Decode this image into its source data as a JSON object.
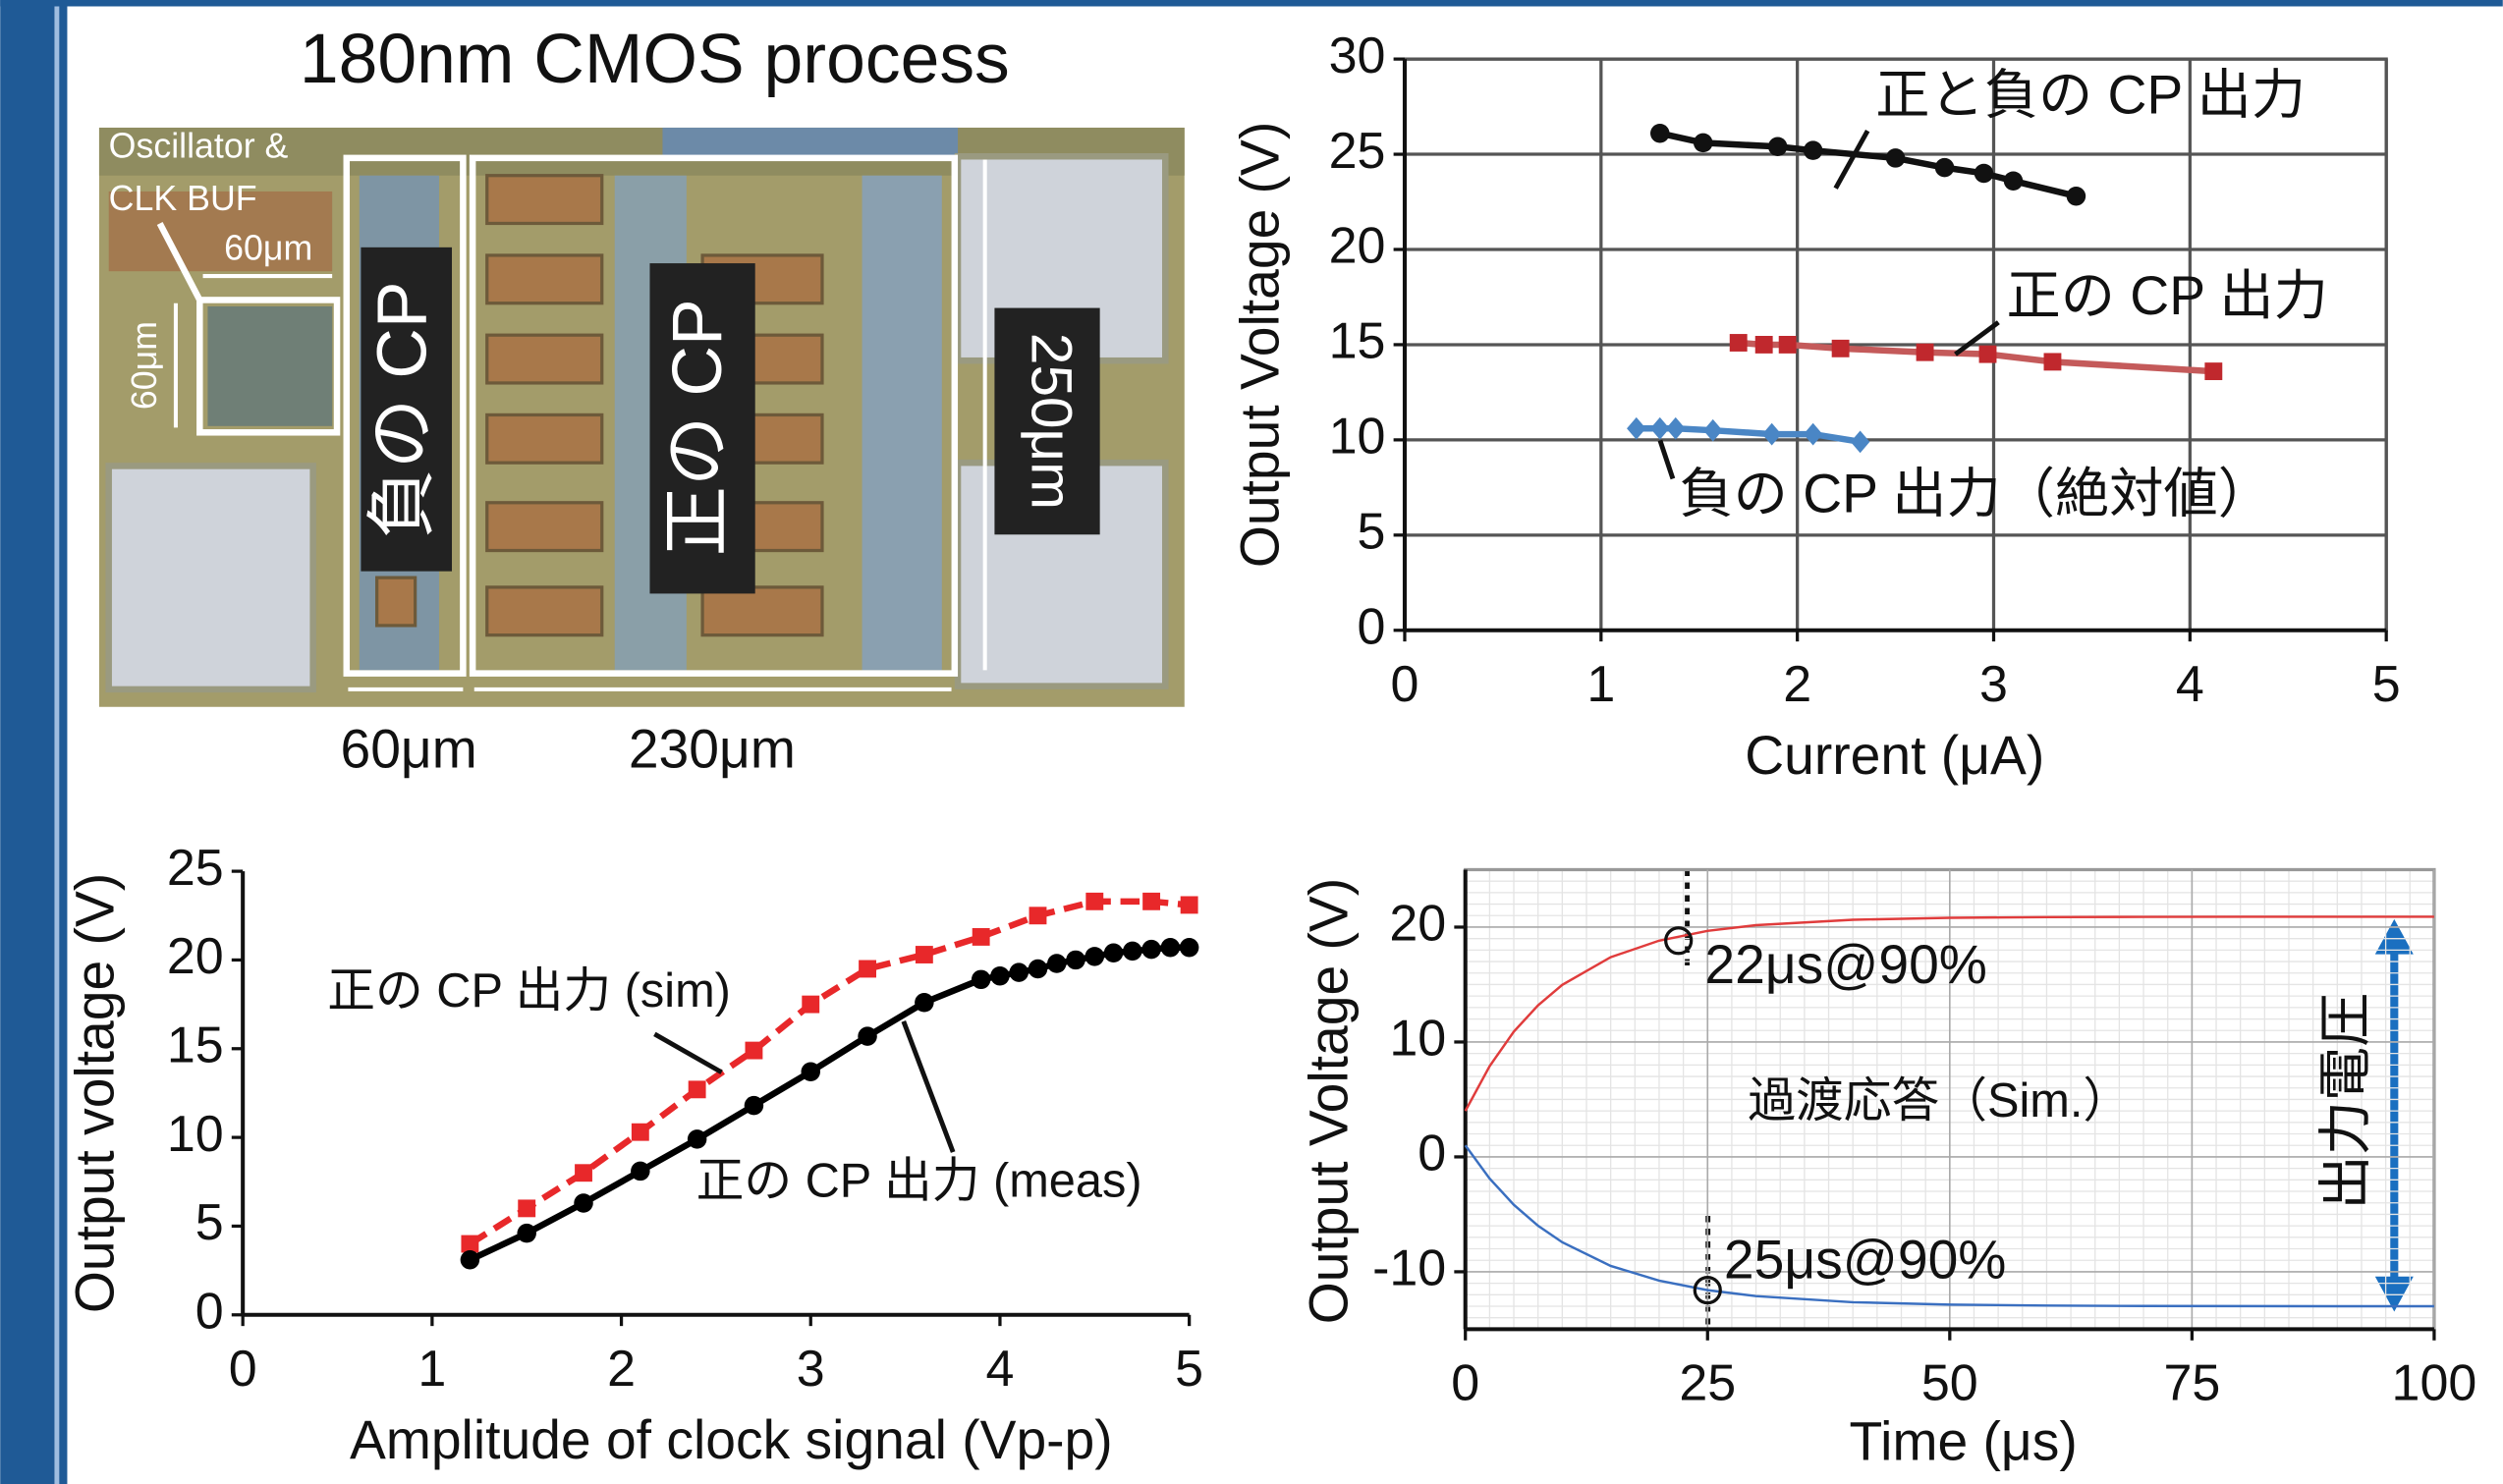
{
  "title": "180nm CMOS process",
  "die_photo": {
    "labels": [
      "Oscillator &",
      "CLK BUF",
      "60μm",
      "60μm",
      "負の CP",
      "正の CP",
      "250μm",
      "60μm",
      "230μm"
    ]
  },
  "chart_data": [
    {
      "type": "line",
      "x_label": "Current (μA)",
      "y_label": "Output Voltage (V)",
      "xlim": [
        0,
        5
      ],
      "xticks": [
        0,
        1,
        2,
        3,
        4,
        5
      ],
      "ylim": [
        0,
        30
      ],
      "yticks": [
        0,
        5,
        10,
        15,
        20,
        25,
        30
      ],
      "grid": true,
      "series": [
        {
          "name": "正と負の CP 出力",
          "color": "#111111",
          "marker": "circle",
          "line_color": "#111111",
          "x": [
            1.3,
            1.52,
            1.9,
            2.08,
            2.5,
            2.75,
            2.95,
            3.1,
            3.42
          ],
          "values": [
            26.1,
            25.6,
            25.4,
            25.2,
            24.8,
            24.3,
            24.0,
            23.6,
            22.8
          ]
        },
        {
          "name": "正の CP 出力",
          "color": "#c0282d",
          "marker": "square",
          "line_color": "#c45a5a",
          "x": [
            1.7,
            1.83,
            1.95,
            2.22,
            2.65,
            2.97,
            3.3,
            4.12
          ],
          "values": [
            15.1,
            15.0,
            15.0,
            14.8,
            14.6,
            14.5,
            14.1,
            13.6
          ]
        },
        {
          "name": "負の CP 出力（絶対値）",
          "color": "#4a86c5",
          "marker": "diamond",
          "line_color": "#4a86c5",
          "x": [
            1.18,
            1.3,
            1.38,
            1.57,
            1.87,
            2.08,
            2.32
          ],
          "values": [
            10.6,
            10.6,
            10.6,
            10.5,
            10.3,
            10.3,
            9.9
          ]
        }
      ]
    },
    {
      "type": "line",
      "x_label": "Amplitude of clock signal (Vp-p)",
      "y_label": "Output voltage (V)",
      "xlim": [
        0,
        5
      ],
      "xticks": [
        0,
        1,
        2,
        3,
        4,
        5
      ],
      "ylim": [
        0,
        25
      ],
      "yticks": [
        0,
        5,
        10,
        15,
        20,
        25
      ],
      "grid": false,
      "series": [
        {
          "name": "正の CP 出力 (sim)",
          "color": "#e8282a",
          "marker": "square",
          "line_color": "#e8282a",
          "dash": true,
          "x": [
            1.2,
            1.5,
            1.8,
            2.1,
            2.4,
            2.7,
            3.0,
            3.3,
            3.6,
            3.9,
            4.2,
            4.5,
            4.8,
            5.0
          ],
          "values": [
            4.0,
            6.0,
            8.0,
            10.3,
            12.7,
            14.9,
            17.5,
            19.5,
            20.3,
            21.3,
            22.5,
            23.3,
            23.3,
            23.1
          ]
        },
        {
          "name": "正の CP 出力 (meas)",
          "color": "#000000",
          "marker": "circle",
          "line_color": "#000000",
          "x": [
            1.2,
            1.5,
            1.8,
            2.1,
            2.4,
            2.7,
            3.0,
            3.3,
            3.6,
            3.9,
            4.0,
            4.1,
            4.2,
            4.3,
            4.4,
            4.5,
            4.6,
            4.7,
            4.8,
            4.9,
            5.0
          ],
          "values": [
            3.1,
            4.6,
            6.3,
            8.1,
            9.9,
            11.8,
            13.7,
            15.7,
            17.6,
            18.9,
            19.1,
            19.3,
            19.5,
            19.8,
            20.0,
            20.2,
            20.4,
            20.5,
            20.6,
            20.7,
            20.7
          ]
        }
      ]
    },
    {
      "type": "line",
      "x_label": "Time (μs)",
      "y_label": "Output Voltage (V)",
      "xlim": [
        0,
        100
      ],
      "xticks": [
        0,
        25,
        50,
        75,
        100
      ],
      "ylim": [
        -15,
        25
      ],
      "yticks": [
        -10,
        0,
        10,
        20
      ],
      "grid": "minor",
      "annotations": [
        "22μs@90%",
        "25μs@90%",
        "過渡応答（Sim.）",
        "出力電圧"
      ],
      "x": [
        0,
        2.5,
        5,
        7.5,
        10,
        15,
        20,
        25,
        30,
        40,
        50,
        60,
        70,
        80,
        90,
        100
      ],
      "series": [
        {
          "color": "#e03c3c",
          "line_color": "#e03c3c",
          "values": [
            4.0,
            7.89,
            10.9,
            13.19,
            14.97,
            17.38,
            18.82,
            19.67,
            20.17,
            20.64,
            20.81,
            20.87,
            20.89,
            20.9,
            20.9,
            20.9
          ]
        },
        {
          "color": "#3a6fc0",
          "line_color": "#3a6fc0",
          "values": [
            1.0,
            -1.88,
            -4.17,
            -5.99,
            -7.43,
            -9.49,
            -10.77,
            -11.6,
            -12.12,
            -12.65,
            -12.86,
            -12.94,
            -12.98,
            -12.99,
            -13.0,
            -13.0
          ]
        }
      ]
    }
  ]
}
